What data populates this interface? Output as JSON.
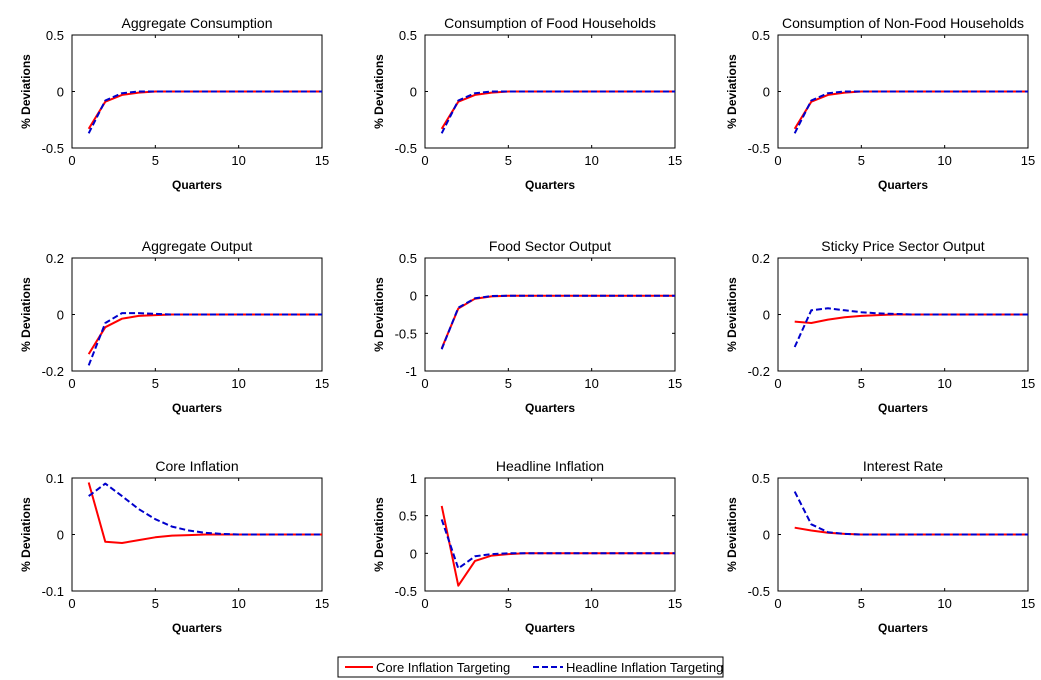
{
  "chart_data": [
    {
      "type": "line",
      "title": "Aggregate Consumption",
      "xlabel": "Quarters",
      "ylabel": "% Deviations",
      "xlim": [
        0,
        15
      ],
      "ylim": [
        -0.5,
        0.5
      ],
      "xticks": [
        "0",
        "5",
        "10",
        "15"
      ],
      "yticks": [
        "-0.5",
        "0",
        "0.5"
      ],
      "x": [
        1,
        2,
        3,
        4,
        5,
        6,
        7,
        8,
        9,
        10,
        11,
        12,
        13,
        14,
        15
      ],
      "series": [
        {
          "name": "Core Inflation Targeting",
          "values": [
            -0.33,
            -0.09,
            -0.03,
            -0.01,
            0,
            0,
            0,
            0,
            0,
            0,
            0,
            0,
            0,
            0,
            0
          ]
        },
        {
          "name": "Headline Inflation Targeting",
          "values": [
            -0.37,
            -0.08,
            -0.015,
            0,
            0,
            0,
            0,
            0,
            0,
            0,
            0,
            0,
            0,
            0,
            0
          ]
        }
      ]
    },
    {
      "type": "line",
      "title": "Consumption of Food Households",
      "xlabel": "Quarters",
      "ylabel": "% Deviations",
      "xlim": [
        0,
        15
      ],
      "ylim": [
        -0.5,
        0.5
      ],
      "xticks": [
        "0",
        "5",
        "10",
        "15"
      ],
      "yticks": [
        "-0.5",
        "0",
        "0.5"
      ],
      "x": [
        1,
        2,
        3,
        4,
        5,
        6,
        7,
        8,
        9,
        10,
        11,
        12,
        13,
        14,
        15
      ],
      "series": [
        {
          "name": "Core Inflation Targeting",
          "values": [
            -0.33,
            -0.09,
            -0.03,
            -0.01,
            0,
            0,
            0,
            0,
            0,
            0,
            0,
            0,
            0,
            0,
            0
          ]
        },
        {
          "name": "Headline Inflation Targeting",
          "values": [
            -0.37,
            -0.08,
            -0.015,
            0,
            0,
            0,
            0,
            0,
            0,
            0,
            0,
            0,
            0,
            0,
            0
          ]
        }
      ]
    },
    {
      "type": "line",
      "title": "Consumption of Non-Food Households",
      "xlabel": "Quarters",
      "ylabel": "% Deviations",
      "xlim": [
        0,
        15
      ],
      "ylim": [
        -0.5,
        0.5
      ],
      "xticks": [
        "0",
        "5",
        "10",
        "15"
      ],
      "yticks": [
        "-0.5",
        "0",
        "0.5"
      ],
      "x": [
        1,
        2,
        3,
        4,
        5,
        6,
        7,
        8,
        9,
        10,
        11,
        12,
        13,
        14,
        15
      ],
      "series": [
        {
          "name": "Core Inflation Targeting",
          "values": [
            -0.33,
            -0.09,
            -0.03,
            -0.01,
            0,
            0,
            0,
            0,
            0,
            0,
            0,
            0,
            0,
            0,
            0
          ]
        },
        {
          "name": "Headline Inflation Targeting",
          "values": [
            -0.37,
            -0.08,
            -0.015,
            0,
            0,
            0,
            0,
            0,
            0,
            0,
            0,
            0,
            0,
            0,
            0
          ]
        }
      ]
    },
    {
      "type": "line",
      "title": "Aggregate Output",
      "xlabel": "Quarters",
      "ylabel": "% Deviations",
      "xlim": [
        0,
        15
      ],
      "ylim": [
        -0.2,
        0.2
      ],
      "xticks": [
        "0",
        "5",
        "10",
        "15"
      ],
      "yticks": [
        "-0.2",
        "0",
        "0.2"
      ],
      "x": [
        1,
        2,
        3,
        4,
        5,
        6,
        7,
        8,
        9,
        10,
        11,
        12,
        13,
        14,
        15
      ],
      "series": [
        {
          "name": "Core Inflation Targeting",
          "values": [
            -0.14,
            -0.045,
            -0.015,
            -0.005,
            -0.002,
            0,
            0,
            0,
            0,
            0,
            0,
            0,
            0,
            0,
            0
          ]
        },
        {
          "name": "Headline Inflation Targeting",
          "values": [
            -0.18,
            -0.03,
            0.005,
            0.005,
            0.002,
            0,
            0,
            0,
            0,
            0,
            0,
            0,
            0,
            0,
            0
          ]
        }
      ]
    },
    {
      "type": "line",
      "title": "Food Sector Output",
      "xlabel": "Quarters",
      "ylabel": "% Deviations",
      "xlim": [
        0,
        15
      ],
      "ylim": [
        -1,
        0.5
      ],
      "xticks": [
        "0",
        "5",
        "10",
        "15"
      ],
      "yticks": [
        "-1",
        "-0.5",
        "0",
        "0.5"
      ],
      "x": [
        1,
        2,
        3,
        4,
        5,
        6,
        7,
        8,
        9,
        10,
        11,
        12,
        13,
        14,
        15
      ],
      "series": [
        {
          "name": "Core Inflation Targeting",
          "values": [
            -0.7,
            -0.17,
            -0.04,
            -0.01,
            0,
            0,
            0,
            0,
            0,
            0,
            0,
            0,
            0,
            0,
            0
          ]
        },
        {
          "name": "Headline Inflation Targeting",
          "values": [
            -0.71,
            -0.16,
            -0.035,
            -0.005,
            0,
            0,
            0,
            0,
            0,
            0,
            0,
            0,
            0,
            0,
            0
          ]
        }
      ]
    },
    {
      "type": "line",
      "title": "Sticky Price Sector Output",
      "xlabel": "Quarters",
      "ylabel": "% Deviations",
      "xlim": [
        0,
        15
      ],
      "ylim": [
        -0.2,
        0.2
      ],
      "xticks": [
        "0",
        "5",
        "10",
        "15"
      ],
      "yticks": [
        "-0.2",
        "0",
        "0.2"
      ],
      "x": [
        1,
        2,
        3,
        4,
        5,
        6,
        7,
        8,
        9,
        10,
        11,
        12,
        13,
        14,
        15
      ],
      "series": [
        {
          "name": "Core Inflation Targeting",
          "values": [
            -0.025,
            -0.03,
            -0.018,
            -0.01,
            -0.005,
            -0.002,
            0,
            0,
            0,
            0,
            0,
            0,
            0,
            0,
            0
          ]
        },
        {
          "name": "Headline Inflation Targeting",
          "values": [
            -0.115,
            0.015,
            0.022,
            0.015,
            0.008,
            0.004,
            0.002,
            0,
            0,
            0,
            0,
            0,
            0,
            0,
            0
          ]
        }
      ]
    },
    {
      "type": "line",
      "title": "Core Inflation",
      "xlabel": "Quarters",
      "ylabel": "% Deviations",
      "xlim": [
        0,
        15
      ],
      "ylim": [
        -0.1,
        0.1
      ],
      "xticks": [
        "0",
        "5",
        "10",
        "15"
      ],
      "yticks": [
        "-0.1",
        "0",
        "0.1"
      ],
      "x": [
        1,
        2,
        3,
        4,
        5,
        6,
        7,
        8,
        9,
        10,
        11,
        12,
        13,
        14,
        15
      ],
      "series": [
        {
          "name": "Core Inflation Targeting",
          "values": [
            0.092,
            -0.013,
            -0.015,
            -0.01,
            -0.005,
            -0.002,
            -0.001,
            0,
            0,
            0,
            0,
            0,
            0,
            0,
            0
          ]
        },
        {
          "name": "Headline Inflation Targeting",
          "values": [
            0.068,
            0.09,
            0.068,
            0.045,
            0.027,
            0.014,
            0.007,
            0.003,
            0.001,
            0,
            0,
            0,
            0,
            0,
            0
          ]
        }
      ]
    },
    {
      "type": "line",
      "title": "Headline Inflation",
      "xlabel": "Quarters",
      "ylabel": "% Deviations",
      "xlim": [
        0,
        15
      ],
      "ylim": [
        -0.5,
        1
      ],
      "xticks": [
        "0",
        "5",
        "10",
        "15"
      ],
      "yticks": [
        "-0.5",
        "0",
        "0.5",
        "1"
      ],
      "x": [
        1,
        2,
        3,
        4,
        5,
        6,
        7,
        8,
        9,
        10,
        11,
        12,
        13,
        14,
        15
      ],
      "series": [
        {
          "name": "Core Inflation Targeting",
          "values": [
            0.63,
            -0.43,
            -0.1,
            -0.03,
            -0.01,
            0,
            0,
            0,
            0,
            0,
            0,
            0,
            0,
            0,
            0
          ]
        },
        {
          "name": "Headline Inflation Targeting",
          "values": [
            0.45,
            -0.2,
            -0.04,
            -0.01,
            0,
            0,
            0,
            0,
            0,
            0,
            0,
            0,
            0,
            0,
            0
          ]
        }
      ]
    },
    {
      "type": "line",
      "title": "Interest Rate",
      "xlabel": "Quarters",
      "ylabel": "% Deviations",
      "xlim": [
        0,
        15
      ],
      "ylim": [
        -0.5,
        0.5
      ],
      "xticks": [
        "0",
        "5",
        "10",
        "15"
      ],
      "yticks": [
        "-0.5",
        "0",
        "0.5"
      ],
      "x": [
        1,
        2,
        3,
        4,
        5,
        6,
        7,
        8,
        9,
        10,
        11,
        12,
        13,
        14,
        15
      ],
      "series": [
        {
          "name": "Core Inflation Targeting",
          "values": [
            0.06,
            0.035,
            0.015,
            0.005,
            0,
            0,
            0,
            0,
            0,
            0,
            0,
            0,
            0,
            0,
            0
          ]
        },
        {
          "name": "Headline Inflation Targeting",
          "values": [
            0.38,
            0.09,
            0.02,
            0.005,
            0,
            0,
            0,
            0,
            0,
            0,
            0,
            0,
            0,
            0,
            0
          ]
        }
      ]
    }
  ],
  "legend": {
    "position": "bottom-center",
    "entries": [
      {
        "label": "Core Inflation Targeting",
        "color": "#ff0000",
        "style": "solid"
      },
      {
        "label": "Headline Inflation Targeting",
        "color": "#0000cc",
        "style": "dashed"
      }
    ]
  },
  "colors": {
    "core": "#ff0000",
    "headline": "#0000cc"
  }
}
